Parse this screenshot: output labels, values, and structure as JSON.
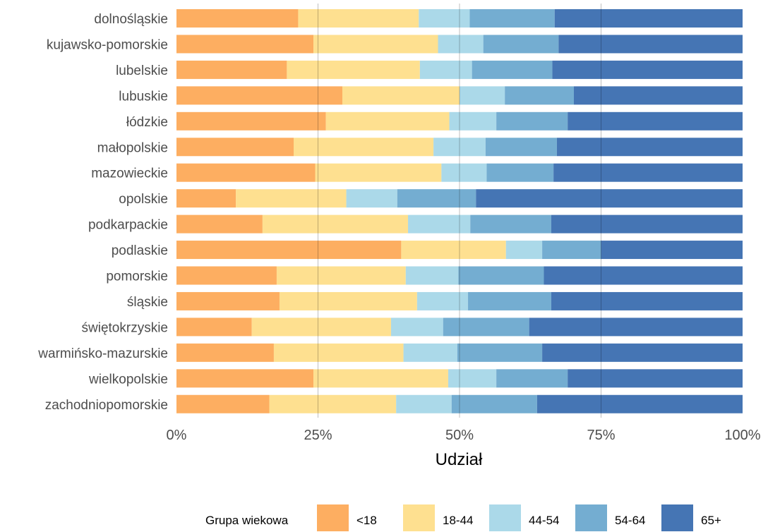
{
  "chart_data": {
    "type": "bar",
    "orientation": "horizontal",
    "stacked": true,
    "normalized": true,
    "categories": [
      "dolnośląskie",
      "kujawsko-pomorskie",
      "lubelskie",
      "lubuskie",
      "łódzkie",
      "małopolskie",
      "mazowieckie",
      "opolskie",
      "podkarpackie",
      "podlaskie",
      "pomorskie",
      "śląskie",
      "świętokrzyskie",
      "warmińsko-mazurskie",
      "wielkopolskie",
      "zachodniopomorskie"
    ],
    "series": [
      {
        "name": "<18",
        "color": "#fdae61",
        "values": [
          21.5,
          24.2,
          19.5,
          29.3,
          26.4,
          20.7,
          24.5,
          10.5,
          15.2,
          39.7,
          17.7,
          18.2,
          13.3,
          17.2,
          24.2,
          16.4
        ]
      },
      {
        "name": "18-44",
        "color": "#fee090",
        "values": [
          21.3,
          22.0,
          23.5,
          20.7,
          21.8,
          24.7,
          22.3,
          19.5,
          25.7,
          18.5,
          22.8,
          24.3,
          24.6,
          22.9,
          23.8,
          22.4
        ]
      },
      {
        "name": "44-54",
        "color": "#abd9e9",
        "values": [
          9.0,
          8.0,
          9.2,
          8.0,
          8.3,
          9.2,
          8.0,
          9.0,
          11.0,
          6.4,
          9.3,
          9.0,
          9.2,
          9.5,
          8.5,
          9.8
        ]
      },
      {
        "name": "54-64",
        "color": "#74add1",
        "values": [
          15.0,
          13.3,
          14.2,
          12.2,
          12.6,
          12.6,
          11.8,
          13.9,
          14.3,
          10.4,
          15.1,
          14.7,
          15.2,
          15.0,
          12.6,
          15.1
        ]
      },
      {
        "name": "65+",
        "color": "#4575b4",
        "values": [
          33.2,
          32.5,
          33.6,
          29.8,
          30.9,
          32.8,
          33.4,
          47.1,
          33.8,
          25.0,
          35.1,
          33.8,
          37.7,
          35.4,
          30.9,
          36.3
        ]
      }
    ],
    "xlim": [
      0,
      100
    ],
    "x_ticks": [
      0,
      25,
      50,
      75,
      100
    ],
    "x_tick_labels": [
      "0%",
      "25%",
      "50%",
      "75%",
      "100%"
    ],
    "xlabel": "Udział",
    "ylabel": "",
    "grid": "vertical-major",
    "legend_title": "Grupa wiekowa",
    "legend_position": "bottom"
  }
}
